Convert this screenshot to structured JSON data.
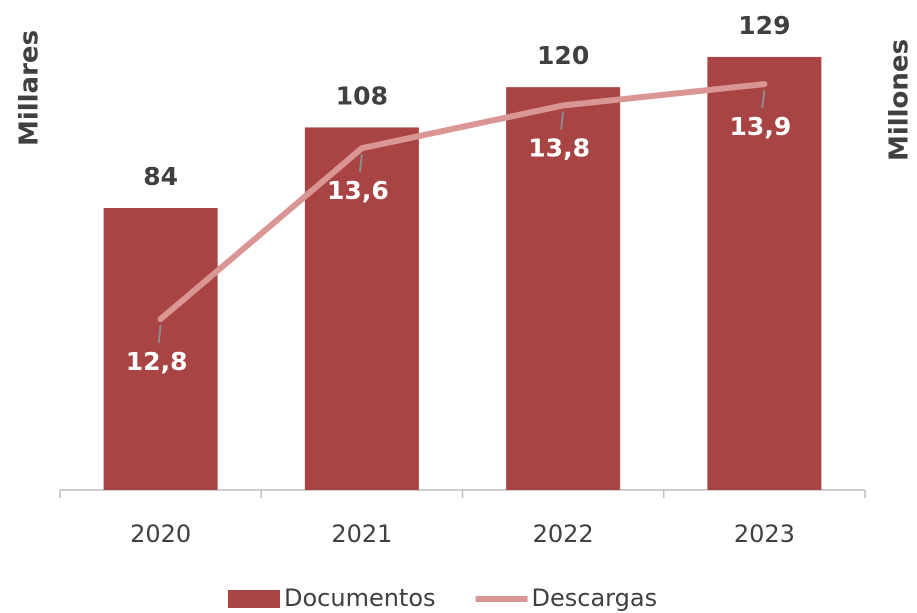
{
  "chart_data": {
    "type": "bar",
    "categories": [
      "2020",
      "2021",
      "2022",
      "2023"
    ],
    "y_label": "Millares",
    "y2_label": "Millones",
    "ylim": [
      0,
      140
    ],
    "y2lim": [
      12,
      14.2
    ],
    "series": [
      {
        "name": "Documentos",
        "type": "bar",
        "color": "#a84444",
        "values": [
          84,
          108,
          120,
          129
        ]
      },
      {
        "name": "Descargas",
        "type": "line",
        "axis": "y2",
        "color": "#d99694",
        "values": [
          12.8,
          13.6,
          13.8,
          13.9
        ],
        "value_labels": [
          "12,8",
          "13,6",
          "13,8",
          "13,9"
        ]
      }
    ],
    "legend": "bottom"
  }
}
